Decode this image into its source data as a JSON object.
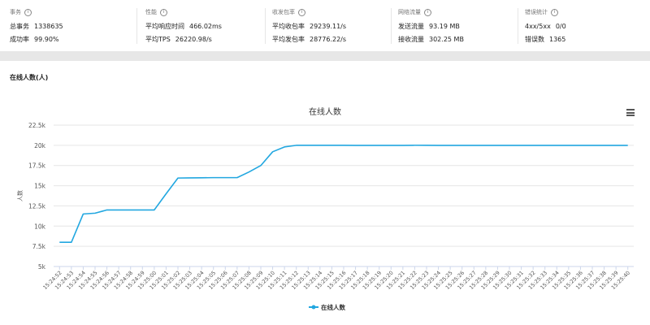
{
  "stats": [
    {
      "title": "事务",
      "rows": [
        {
          "label": "总事务",
          "value": "1338635"
        },
        {
          "label": "成功率",
          "value": "99.90%"
        }
      ]
    },
    {
      "title": "性能",
      "rows": [
        {
          "label": "平均响应时间",
          "value": "466.02ms"
        },
        {
          "label": "平均TPS",
          "value": "26220.98/s"
        }
      ]
    },
    {
      "title": "收发包率",
      "rows": [
        {
          "label": "平均收包率",
          "value": "29239.11/s"
        },
        {
          "label": "平均发包率",
          "value": "28776.22/s"
        }
      ]
    },
    {
      "title": "网络流量",
      "rows": [
        {
          "label": "发送流量",
          "value": "93.19 MB"
        },
        {
          "label": "接收流量",
          "value": "302.25 MB"
        }
      ]
    },
    {
      "title": "错误统计",
      "rows": [
        {
          "label": "4xx/5xx",
          "value": "0/0"
        },
        {
          "label": "错误数",
          "value": "1365"
        }
      ]
    }
  ],
  "section": {
    "title": "在线人数(人)"
  },
  "chart_data": {
    "type": "line",
    "title": "在线人数",
    "ylabel": "人数",
    "xlabel": "",
    "ylim": [
      5000,
      22500
    ],
    "yticks": [
      5000,
      7500,
      10000,
      12500,
      15000,
      17500,
      20000,
      22500
    ],
    "ytick_labels": [
      "5k",
      "7.5k",
      "10k",
      "12.5k",
      "15k",
      "17.5k",
      "20k",
      "22.5k"
    ],
    "legend_position": "bottom-center",
    "grid": true,
    "series_color": "#22a7e0",
    "x": [
      "15:24:52",
      "15:24:53",
      "15:24:54",
      "15:24:55",
      "15:24:56",
      "15:24:57",
      "15:24:58",
      "15:24:59",
      "15:25:00",
      "15:25:01",
      "15:25:02",
      "15:25:03",
      "15:25:04",
      "15:25:05",
      "15:25:06",
      "15:25:07",
      "15:25:08",
      "15:25:09",
      "15:25:10",
      "15:25:11",
      "15:25:12",
      "15:25:13",
      "15:25:14",
      "15:25:15",
      "15:25:16",
      "15:25:17",
      "15:25:18",
      "15:25:19",
      "15:25:20",
      "15:25:21",
      "15:25:22",
      "15:25:23",
      "15:25:24",
      "15:25:25",
      "15:25:26",
      "15:25:27",
      "15:25:28",
      "15:25:29",
      "15:25:30",
      "15:25:31",
      "15:25:32",
      "15:25:33",
      "15:25:34",
      "15:25:35",
      "15:25:36",
      "15:25:37",
      "15:25:38",
      "15:25:39",
      "15:25:40"
    ],
    "series": [
      {
        "name": "在线人数",
        "values": [
          8000,
          8000,
          11500,
          11600,
          12000,
          12000,
          12000,
          12000,
          12000,
          14000,
          15950,
          15970,
          15980,
          16000,
          16000,
          16000,
          16700,
          17500,
          19200,
          19800,
          20000,
          20000,
          20000,
          20000,
          20000,
          19990,
          19990,
          19990,
          19990,
          19990,
          20010,
          20000,
          19990,
          19990,
          19990,
          19990,
          19990,
          19990,
          19990,
          19990,
          19990,
          19990,
          19990,
          19990,
          19990,
          19990,
          19990,
          19990,
          19990
        ]
      }
    ]
  }
}
